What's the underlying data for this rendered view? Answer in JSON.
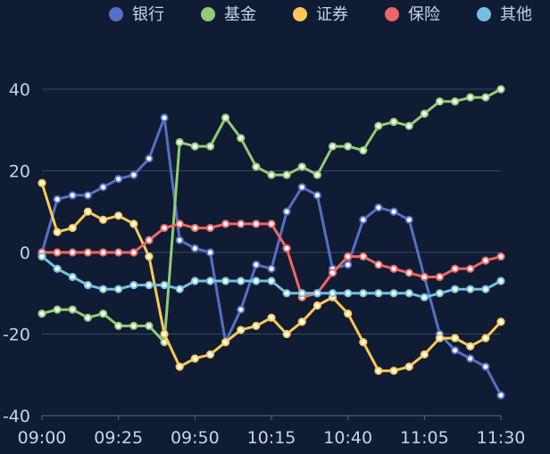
{
  "chart_data": {
    "type": "line",
    "x": [
      "09:00",
      "09:05",
      "09:10",
      "09:15",
      "09:20",
      "09:25",
      "09:30",
      "09:35",
      "09:40",
      "09:45",
      "09:50",
      "09:55",
      "10:00",
      "10:05",
      "10:10",
      "10:15",
      "10:20",
      "10:25",
      "10:30",
      "10:35",
      "10:40",
      "10:45",
      "10:50",
      "10:55",
      "11:00",
      "11:05",
      "11:10",
      "11:15",
      "11:20",
      "11:25",
      "11:30"
    ],
    "xticks": [
      "09:00",
      "09:25",
      "09:50",
      "10:15",
      "10:40",
      "11:05",
      "11:30"
    ],
    "ylim": [
      -40,
      40
    ],
    "yticks": [
      40,
      20,
      0,
      -20,
      -40
    ],
    "grid": true,
    "legend_position": "top-right",
    "series": [
      {
        "name": "银行",
        "color": "#5470c6",
        "values": [
          0,
          13,
          14,
          14,
          16,
          18,
          19,
          23,
          33,
          3,
          1,
          0,
          -22,
          -14,
          -3,
          -4,
          10,
          16,
          14,
          -4,
          -3,
          8,
          11,
          10,
          8,
          -6,
          -20,
          -24,
          -26,
          -28,
          -35
        ]
      },
      {
        "name": "基金",
        "color": "#91cc75",
        "values": [
          -15,
          -14,
          -14,
          -16,
          -15,
          -18,
          -18,
          -18,
          -22,
          27,
          26,
          26,
          33,
          28,
          21,
          19,
          19,
          21,
          19,
          26,
          26,
          25,
          31,
          32,
          31,
          34,
          37,
          37,
          38,
          38,
          40
        ]
      },
      {
        "name": "证券",
        "color": "#fac858",
        "values": [
          17,
          5,
          6,
          10,
          8,
          9,
          7,
          -1,
          -20,
          -28,
          -26,
          -25,
          -22,
          -19,
          -18,
          -16,
          -20,
          -17,
          -13,
          -11,
          -15,
          -22,
          -29,
          -29,
          -28,
          -25,
          -21,
          -21,
          -23,
          -21,
          -17
        ]
      },
      {
        "name": "保险",
        "color": "#ee6666",
        "values": [
          0,
          0,
          0,
          0,
          0,
          0,
          0,
          3,
          6,
          7,
          6,
          6,
          7,
          7,
          7,
          7,
          1,
          -11,
          -10,
          -5,
          -1,
          -1,
          -3,
          -4,
          -5,
          -6,
          -6,
          -4,
          -4,
          -2,
          -1
        ]
      },
      {
        "name": "其他",
        "color": "#73c0de",
        "values": [
          -1,
          -4,
          -6,
          -8,
          -9,
          -9,
          -8,
          -8,
          -8,
          -9,
          -7,
          -7,
          -7,
          -7,
          -7,
          -7,
          -10,
          -10,
          -10,
          -10,
          -10,
          -10,
          -10,
          -10,
          -10,
          -11,
          -10,
          -9,
          -9,
          -9,
          -7
        ]
      }
    ]
  }
}
